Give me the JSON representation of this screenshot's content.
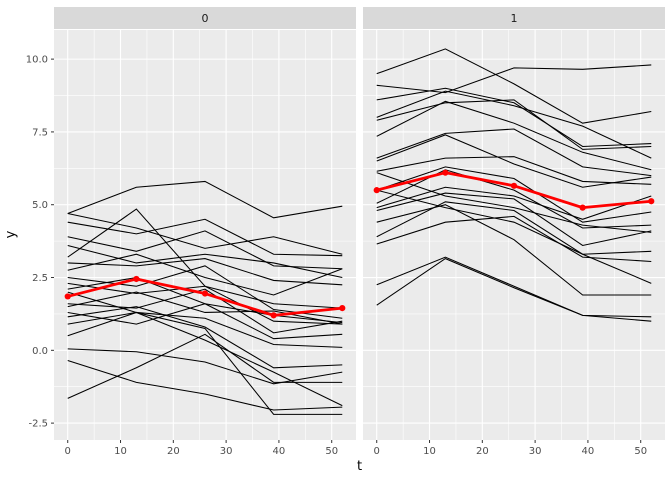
{
  "chart_data": {
    "type": "line",
    "description": "Faceted spaghetti plot of individual trajectories y over time t with red mean profile, ggplot2 style",
    "xlabel": "t",
    "ylabel": "y",
    "x_ticks": [
      0,
      10,
      20,
      30,
      40,
      50
    ],
    "x_minor_ticks": [
      5,
      15,
      25,
      35,
      45
    ],
    "y_ticks": [
      -2.5,
      0.0,
      2.5,
      5.0,
      7.5,
      10.0
    ],
    "y_tick_labels": [
      "-2.5",
      "0.0",
      "2.5",
      "5.0",
      "7.5",
      "10.0"
    ],
    "y_minor_ticks": [
      -1.25,
      1.25,
      3.75,
      6.25,
      8.75
    ],
    "x_domain": [
      -2.6,
      54.6
    ],
    "y_domain": [
      -3.08,
      11.0
    ],
    "time_points": [
      0,
      13,
      26,
      39,
      52
    ],
    "legend": "none",
    "grid": "on",
    "facets": [
      {
        "label": "0",
        "series": [
          [
            4.7,
            5.6,
            5.8,
            4.55,
            4.95
          ],
          [
            3.2,
            4.85,
            2.2,
            1.0,
            0.9
          ],
          [
            4.4,
            4.0,
            4.5,
            3.3,
            3.25
          ],
          [
            4.7,
            4.2,
            3.5,
            3.9,
            3.3
          ],
          [
            3.9,
            3.4,
            4.1,
            2.9,
            2.8
          ],
          [
            3.6,
            3.0,
            3.3,
            3.0,
            2.5
          ],
          [
            3.0,
            2.9,
            3.15,
            2.4,
            2.25
          ],
          [
            2.75,
            3.3,
            2.5,
            1.9,
            2.8
          ],
          [
            2.5,
            2.2,
            2.9,
            1.4,
            1.1
          ],
          [
            2.3,
            1.95,
            2.2,
            1.6,
            1.45
          ],
          [
            2.1,
            2.5,
            1.6,
            1.2,
            0.95
          ],
          [
            1.6,
            1.45,
            2.1,
            0.6,
            1.0
          ],
          [
            1.5,
            2.0,
            1.3,
            1.35,
            0.9
          ],
          [
            1.3,
            0.9,
            1.6,
            0.4,
            0.55
          ],
          [
            1.15,
            1.5,
            0.8,
            -0.6,
            -0.5
          ],
          [
            0.9,
            1.3,
            1.1,
            0.2,
            0.1
          ],
          [
            0.05,
            -0.05,
            -0.4,
            -1.15,
            -0.75
          ],
          [
            -1.65,
            -0.6,
            0.55,
            -1.1,
            -1.1
          ],
          [
            -0.35,
            -1.1,
            -1.5,
            -2.05,
            -1.95
          ],
          [
            0.5,
            1.3,
            0.75,
            -2.2,
            -2.2
          ],
          [
            2.0,
            1.3,
            0.35,
            -0.75,
            -1.9
          ]
        ],
        "mean": [
          1.85,
          2.45,
          1.95,
          1.2,
          1.45
        ]
      },
      {
        "label": "1",
        "series": [
          [
            9.5,
            10.35,
            9.15,
            7.8,
            8.2
          ],
          [
            9.1,
            8.85,
            9.7,
            9.65,
            9.8
          ],
          [
            8.6,
            9.0,
            8.5,
            7.0,
            7.1
          ],
          [
            8.0,
            8.9,
            8.4,
            7.7,
            6.6
          ],
          [
            7.9,
            8.5,
            8.6,
            6.9,
            7.0
          ],
          [
            7.35,
            8.55,
            7.8,
            6.8,
            6.2
          ],
          [
            6.6,
            7.45,
            7.6,
            6.3,
            6.0
          ],
          [
            6.5,
            7.4,
            6.4,
            5.6,
            5.95
          ],
          [
            6.15,
            6.6,
            6.65,
            5.8,
            5.7
          ],
          [
            5.5,
            6.3,
            5.9,
            4.4,
            4.75
          ],
          [
            5.05,
            6.2,
            5.5,
            4.2,
            4.3
          ],
          [
            4.8,
            5.4,
            5.2,
            3.6,
            4.1
          ],
          [
            3.9,
            5.1,
            4.8,
            3.3,
            3.4
          ],
          [
            3.65,
            4.4,
            4.6,
            3.2,
            3.05
          ],
          [
            2.25,
            3.2,
            2.2,
            1.2,
            1.15
          ],
          [
            1.55,
            3.15,
            2.15,
            1.2,
            1.0
          ],
          [
            4.4,
            5.0,
            3.8,
            1.9,
            1.9
          ],
          [
            5.5,
            4.9,
            4.4,
            3.3,
            2.3
          ],
          [
            6.1,
            5.3,
            4.9,
            4.3,
            4.05
          ],
          [
            4.9,
            5.6,
            5.3,
            4.5,
            5.3
          ]
        ],
        "mean": [
          5.5,
          6.1,
          5.65,
          4.9,
          5.12
        ]
      }
    ],
    "colors": {
      "figure_bg": "#FFFFFF",
      "panel_bg": "#EBEBEB",
      "strip_bg": "#D9D9D9",
      "grid": "#FFFFFF",
      "line": "#000000",
      "mean_line": "#FF0000",
      "axis_text": "#4D4D4D",
      "tick_mark": "#333333",
      "axis_title": "#000000"
    }
  }
}
